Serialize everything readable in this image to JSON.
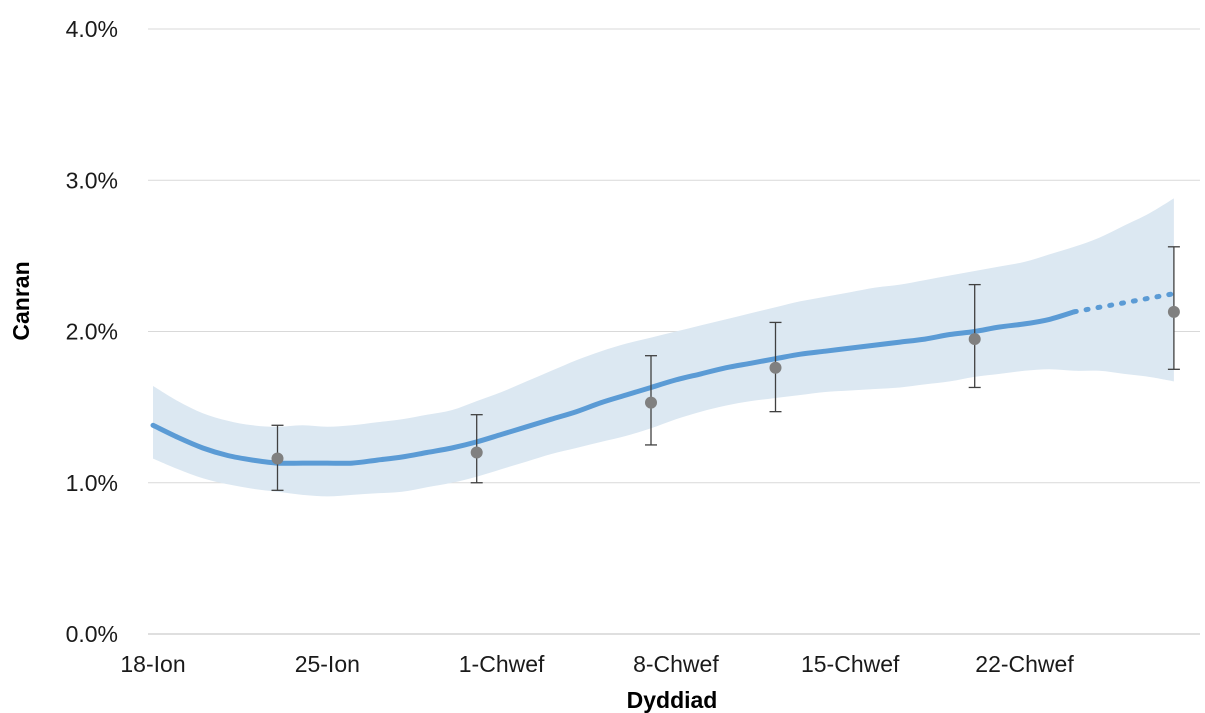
{
  "chart_data": {
    "type": "line",
    "title": "",
    "xlabel": "Dyddiad",
    "ylabel": "Canran",
    "x_ticks": [
      "18-Ion",
      "25-Ion",
      "1-Chwef",
      "8-Chwef",
      "15-Chwef",
      "22-Chwef"
    ],
    "y_ticks": [
      "0.0%",
      "1.0%",
      "2.0%",
      "3.0%",
      "4.0%"
    ],
    "ylim": [
      0,
      4.0
    ],
    "xlim": [
      "2021-01-18",
      "2021-02-28"
    ],
    "grid": true,
    "legend": "none",
    "colors": {
      "line": "#5b9bd5",
      "band": "#dce8f2",
      "marker": "#808080",
      "error_bar": "#404040",
      "grid": "#d9d9d9"
    },
    "series": [
      {
        "x": [
          "2021-01-18",
          "2021-01-19",
          "2021-01-20",
          "2021-01-21",
          "2021-01-22",
          "2021-01-23",
          "2021-01-24",
          "2021-01-25",
          "2021-01-26",
          "2021-01-27",
          "2021-01-28",
          "2021-01-29",
          "2021-01-30",
          "2021-01-31",
          "2021-02-01",
          "2021-02-02",
          "2021-02-03",
          "2021-02-04",
          "2021-02-05",
          "2021-02-06",
          "2021-02-07",
          "2021-02-08",
          "2021-02-09",
          "2021-02-10",
          "2021-02-11",
          "2021-02-12",
          "2021-02-13",
          "2021-02-14",
          "2021-02-15",
          "2021-02-16",
          "2021-02-17",
          "2021-02-18",
          "2021-02-19",
          "2021-02-20",
          "2021-02-21",
          "2021-02-22",
          "2021-02-23",
          "2021-02-24"
        ],
        "values": [
          1.38,
          1.3,
          1.23,
          1.18,
          1.15,
          1.13,
          1.13,
          1.13,
          1.13,
          1.15,
          1.17,
          1.2,
          1.23,
          1.27,
          1.32,
          1.37,
          1.42,
          1.47,
          1.53,
          1.58,
          1.63,
          1.68,
          1.72,
          1.76,
          1.79,
          1.82,
          1.85,
          1.87,
          1.89,
          1.91,
          1.93,
          1.95,
          1.98,
          2.0,
          2.03,
          2.05,
          2.08,
          2.13
        ],
        "lower": [
          1.16,
          1.09,
          1.03,
          0.99,
          0.96,
          0.94,
          0.92,
          0.91,
          0.92,
          0.93,
          0.94,
          0.97,
          1.0,
          1.04,
          1.09,
          1.14,
          1.19,
          1.23,
          1.27,
          1.31,
          1.36,
          1.42,
          1.47,
          1.51,
          1.54,
          1.56,
          1.58,
          1.6,
          1.61,
          1.62,
          1.63,
          1.65,
          1.67,
          1.7,
          1.72,
          1.74,
          1.75,
          1.74
        ],
        "upper": [
          1.64,
          1.54,
          1.46,
          1.41,
          1.38,
          1.37,
          1.38,
          1.37,
          1.38,
          1.4,
          1.42,
          1.45,
          1.48,
          1.54,
          1.6,
          1.67,
          1.74,
          1.81,
          1.87,
          1.92,
          1.96,
          2.0,
          2.04,
          2.08,
          2.12,
          2.16,
          2.2,
          2.23,
          2.26,
          2.29,
          2.31,
          2.34,
          2.37,
          2.4,
          2.43,
          2.46,
          2.51,
          2.56
        ]
      }
    ],
    "projection": {
      "x": [
        "2021-02-24",
        "2021-02-25",
        "2021-02-26",
        "2021-02-27",
        "2021-02-28"
      ],
      "values": [
        2.13,
        2.16,
        2.19,
        2.22,
        2.25
      ],
      "lower": [
        1.74,
        1.74,
        1.72,
        1.7,
        1.67
      ],
      "upper": [
        2.56,
        2.62,
        2.7,
        2.78,
        2.88
      ]
    },
    "points": {
      "x": [
        "2021-01-23",
        "2021-01-31",
        "2021-02-07",
        "2021-02-12",
        "2021-02-20",
        "2021-02-28"
      ],
      "values": [
        1.16,
        1.2,
        1.53,
        1.76,
        1.95,
        2.13
      ],
      "lower": [
        0.95,
        1.0,
        1.25,
        1.47,
        1.63,
        1.75
      ],
      "upper": [
        1.38,
        1.45,
        1.84,
        2.06,
        2.31,
        2.56
      ]
    }
  }
}
